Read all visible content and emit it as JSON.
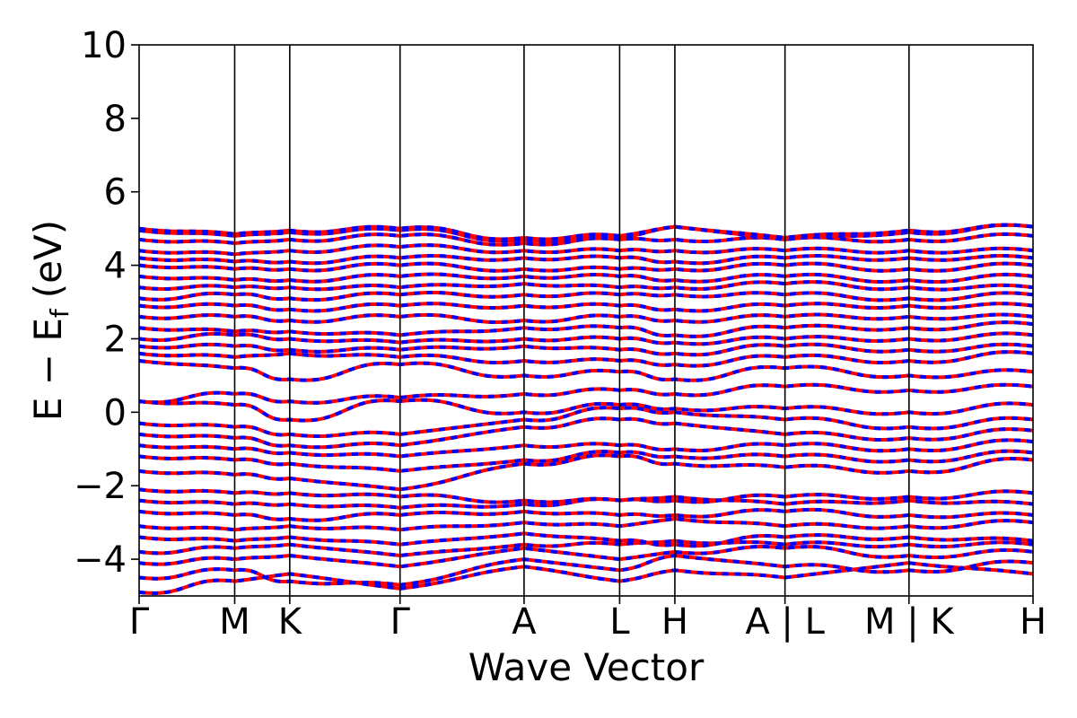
{
  "chart_data": {
    "type": "line",
    "title": "",
    "xlabel": "Wave Vector",
    "ylabel_main": "E − E",
    "ylabel_sub": "f",
    "ylabel_unit": "(eV)",
    "ylim": [
      -5,
      10
    ],
    "yticks": [
      -4,
      -2,
      0,
      2,
      4,
      6,
      8,
      10
    ],
    "ytick_labels": [
      "−4",
      "−2",
      "0",
      "2",
      "4",
      "6",
      "8",
      "10"
    ],
    "grid": false,
    "kpath_labels": [
      "Γ",
      "M",
      "K",
      "Γ",
      "A",
      "L",
      "H",
      "A | L",
      "M | K",
      "H"
    ],
    "kpath_positions": [
      0.0,
      0.578,
      0.911,
      1.578,
      2.328,
      2.906,
      3.24,
      3.906,
      4.656,
      5.406
    ],
    "series": [
      {
        "color": "#ff0000",
        "dash": "solid"
      },
      {
        "color": "#0000ff",
        "dash": "dashed"
      }
    ],
    "bands": [
      [
        -4.9,
        -4.6,
        -4.4,
        -4.8,
        -4.2,
        -4.6,
        -4.3,
        -4.5,
        -4.1,
        -4.4
      ],
      [
        -4.5,
        -4.3,
        -4.6,
        -4.7,
        -4.0,
        -4.3,
        -3.9,
        -4.2,
        -4.3,
        -4.1
      ],
      [
        -4.1,
        -4.0,
        -3.9,
        -4.2,
        -3.7,
        -4.0,
        -3.8,
        -3.7,
        -3.9,
        -3.8
      ],
      [
        -3.8,
        -3.7,
        -3.6,
        -3.9,
        -3.6,
        -3.6,
        -3.5,
        -3.6,
        -3.6,
        -3.6
      ],
      [
        -3.4,
        -3.5,
        -3.4,
        -3.6,
        -3.3,
        -3.5,
        -3.6,
        -3.4,
        -3.4,
        -3.5
      ],
      [
        -3.1,
        -3.2,
        -3.1,
        -3.2,
        -3.0,
        -3.1,
        -2.9,
        -3.1,
        -3.1,
        -3.0
      ],
      [
        -2.7,
        -2.8,
        -2.9,
        -2.8,
        -2.7,
        -2.8,
        -2.8,
        -2.7,
        -2.8,
        -2.8
      ],
      [
        -2.4,
        -2.5,
        -2.5,
        -2.6,
        -2.5,
        -2.4,
        -2.3,
        -2.5,
        -2.4,
        -2.5
      ],
      [
        -2.1,
        -2.2,
        -2.2,
        -2.3,
        -2.4,
        -2.4,
        -2.4,
        -2.3,
        -2.3,
        -2.2
      ],
      [
        -1.6,
        -1.7,
        -1.8,
        -2.1,
        -1.4,
        -1.2,
        -1.4,
        -1.5,
        -1.6,
        -1.3
      ],
      [
        -1.2,
        -1.3,
        -1.4,
        -1.6,
        -1.3,
        -1.1,
        -1.2,
        -1.2,
        -1.3,
        -1.1
      ],
      [
        -0.9,
        -1.0,
        -1.1,
        -1.2,
        -0.9,
        -0.9,
        -1.0,
        -0.9,
        -1.0,
        -0.8
      ],
      [
        -0.6,
        -0.7,
        -0.9,
        -0.9,
        -0.4,
        -0.2,
        -0.3,
        -0.6,
        -0.7,
        -0.5
      ],
      [
        -0.3,
        -0.4,
        -0.6,
        -0.6,
        -0.2,
        0.1,
        0.0,
        -0.2,
        -0.4,
        -0.2
      ],
      [
        0.3,
        0.2,
        -0.2,
        0.3,
        0.0,
        0.2,
        0.1,
        0.1,
        0.0,
        0.2
      ],
      [
        0.3,
        0.5,
        0.3,
        0.4,
        0.5,
        0.6,
        0.5,
        0.7,
        0.6,
        0.7
      ],
      [
        1.4,
        1.2,
        0.9,
        1.3,
        1.0,
        1.1,
        0.9,
        1.2,
        1.0,
        1.1
      ],
      [
        1.6,
        1.5,
        1.6,
        1.5,
        1.4,
        1.4,
        1.3,
        1.5,
        1.4,
        1.6
      ],
      [
        1.8,
        1.8,
        1.7,
        1.7,
        1.8,
        1.7,
        1.6,
        1.8,
        1.7,
        1.8
      ],
      [
        2.0,
        2.1,
        2.0,
        1.9,
        2.0,
        2.0,
        1.9,
        2.0,
        2.0,
        2.1
      ],
      [
        2.3,
        2.2,
        2.2,
        2.1,
        2.3,
        2.3,
        2.1,
        2.3,
        2.3,
        2.4
      ],
      [
        2.6,
        2.6,
        2.5,
        2.6,
        2.5,
        2.6,
        2.5,
        2.6,
        2.6,
        2.6
      ],
      [
        2.9,
        2.9,
        2.8,
        2.9,
        2.9,
        2.9,
        2.8,
        2.9,
        2.9,
        2.9
      ],
      [
        3.1,
        3.2,
        3.1,
        3.2,
        3.2,
        3.2,
        3.2,
        3.2,
        3.1,
        3.2
      ],
      [
        3.4,
        3.4,
        3.4,
        3.4,
        3.5,
        3.4,
        3.4,
        3.5,
        3.4,
        3.4
      ],
      [
        3.7,
        3.6,
        3.6,
        3.7,
        3.7,
        3.7,
        3.6,
        3.7,
        3.6,
        3.7
      ],
      [
        4.0,
        3.9,
        3.9,
        4.0,
        3.9,
        3.9,
        3.9,
        4.0,
        3.9,
        4.0
      ],
      [
        4.2,
        4.1,
        4.1,
        4.2,
        4.2,
        4.2,
        4.1,
        4.2,
        4.2,
        4.2
      ],
      [
        4.4,
        4.3,
        4.4,
        4.5,
        4.4,
        4.4,
        4.4,
        4.4,
        4.4,
        4.4
      ],
      [
        4.7,
        4.6,
        4.7,
        4.8,
        4.6,
        4.7,
        4.7,
        4.7,
        4.7,
        4.8
      ],
      [
        4.95,
        4.8,
        4.9,
        4.95,
        4.7,
        4.75,
        5.05,
        4.7,
        4.9,
        5.05
      ],
      [
        5.0,
        4.85,
        4.95,
        5.0,
        4.75,
        4.8,
        5.05,
        4.75,
        4.95,
        5.05
      ]
    ]
  }
}
